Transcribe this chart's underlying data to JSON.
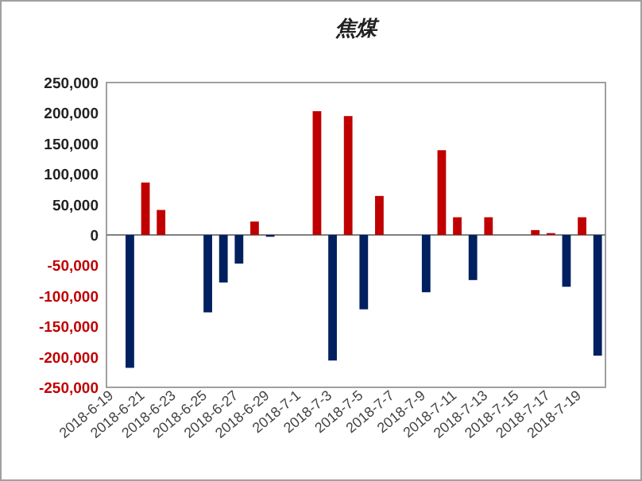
{
  "chart_data": {
    "type": "bar",
    "title": "焦煤",
    "categories": [
      "2018-6-19",
      null,
      "2018-6-21",
      null,
      "2018-6-23",
      null,
      "2018-6-25",
      null,
      "2018-6-27",
      null,
      "2018-6-29",
      null,
      "2018-7-1",
      null,
      "2018-7-3",
      null,
      "2018-7-5",
      null,
      "2018-7-7",
      null,
      "2018-7-9",
      null,
      "2018-7-11",
      null,
      "2018-7-13",
      null,
      "2018-7-15",
      null,
      "2018-7-17",
      null,
      "2018-7-19",
      null
    ],
    "values": [
      null,
      -218000,
      86000,
      41000,
      null,
      null,
      -127000,
      -78000,
      -47000,
      22000,
      -3000,
      null,
      null,
      203000,
      -206000,
      195000,
      -122000,
      64000,
      null,
      null,
      -94000,
      139000,
      29000,
      -74000,
      29000,
      null,
      null,
      8000,
      3000,
      -85000,
      29000,
      -198000
    ],
    "colors": [
      null,
      "#002060",
      "#c00000",
      "#c00000",
      null,
      null,
      "#002060",
      "#002060",
      "#002060",
      "#c00000",
      "#002060",
      null,
      null,
      "#c00000",
      "#002060",
      "#c00000",
      "#002060",
      "#c00000",
      null,
      null,
      "#002060",
      "#c00000",
      "#c00000",
      "#002060",
      "#c00000",
      null,
      null,
      "#c00000",
      "#c00000",
      "#002060",
      "#c00000",
      "#002060"
    ],
    "ylim": [
      -250000,
      250000
    ],
    "yticks": [
      {
        "value": -250000,
        "label": "-250,000"
      },
      {
        "value": -200000,
        "label": "-200,000"
      },
      {
        "value": -150000,
        "label": "-150,000"
      },
      {
        "value": -100000,
        "label": "-100,000"
      },
      {
        "value": -50000,
        "label": "-50,000"
      },
      {
        "value": 0,
        "label": "0"
      },
      {
        "value": 50000,
        "label": "50,000"
      },
      {
        "value": 100000,
        "label": "100,000"
      },
      {
        "value": 150000,
        "label": "150,000"
      },
      {
        "value": 200000,
        "label": "200,000"
      },
      {
        "value": 250000,
        "label": "250,000"
      }
    ]
  }
}
